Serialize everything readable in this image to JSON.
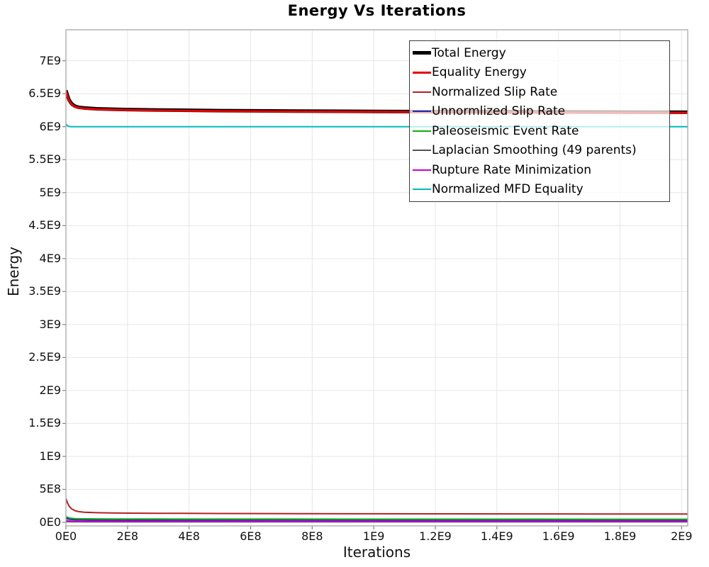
{
  "chart_data": {
    "type": "line",
    "title": "Energy Vs Iterations",
    "xlabel": "Iterations",
    "ylabel": "Energy",
    "xlim": [
      0,
      2020000000.0
    ],
    "ylim": [
      -54000000.0,
      7470000000.0
    ],
    "grid": true,
    "legend_position": "top-right",
    "background": "#ffffff",
    "grid_color": "#e6e6e6",
    "border_color": "#a8a8a8",
    "tick_color": "#808080",
    "x_ticks": {
      "values": [
        0,
        200000000.0,
        400000000.0,
        600000000.0,
        800000000.0,
        1000000000.0,
        1200000000.0,
        1400000000.0,
        1600000000.0,
        1800000000.0,
        2000000000.0
      ],
      "labels": [
        "0E0",
        "2E8",
        "4E8",
        "6E8",
        "8E8",
        "1E9",
        "1.2E9",
        "1.4E9",
        "1.6E9",
        "1.8E9",
        "2E9"
      ]
    },
    "y_ticks": {
      "values": [
        0,
        500000000.0,
        1000000000.0,
        1500000000.0,
        2000000000.0,
        2500000000.0,
        3000000000.0,
        3500000000.0,
        4000000000.0,
        4500000000.0,
        5000000000.0,
        5500000000.0,
        6000000000.0,
        6500000000.0,
        7000000000.0
      ],
      "labels": [
        "0E0",
        "5E8",
        "1E9",
        "1.5E9",
        "2E9",
        "2.5E9",
        "3E9",
        "3.5E9",
        "4E9",
        "4.5E9",
        "5E9",
        "5.5E9",
        "6E9",
        "6.5E9",
        "7E9"
      ]
    },
    "x": [
      0,
      5000000.0,
      10000000.0,
      15000000.0,
      20000000.0,
      30000000.0,
      40000000.0,
      60000000.0,
      100000000.0,
      150000000.0,
      200000000.0,
      300000000.0,
      500000000.0,
      750000000.0,
      1000000000.0,
      1250000000.0,
      1500000000.0,
      1750000000.0,
      2020000000.0
    ],
    "series": [
      {
        "name": "Total Energy",
        "color": "#000000",
        "width": 5,
        "values": [
          6550000000.0,
          6470000000.0,
          6410000000.0,
          6370000000.0,
          6340000000.0,
          6310000000.0,
          6295000000.0,
          6283000000.0,
          6272000000.0,
          6265000000.0,
          6260000000.0,
          6253000000.0,
          6244000000.0,
          6237000000.0,
          6232000000.0,
          6228000000.0,
          6225000000.0,
          6222000000.0,
          6219000000.0
        ]
      },
      {
        "name": "Equality Energy",
        "color": "#e60000",
        "width": 3,
        "values": [
          6543000000.0,
          6463000000.0,
          6403000000.0,
          6363000000.0,
          6333000000.0,
          6303000000.0,
          6288000000.0,
          6276000000.0,
          6265000000.0,
          6258000000.0,
          6253000000.0,
          6246000000.0,
          6237000000.0,
          6230000000.0,
          6225000000.0,
          6221000000.0,
          6218000000.0,
          6215000000.0,
          6212000000.0
        ]
      },
      {
        "name": "Normalized Slip Rate",
        "color": "#b22222",
        "width": 2,
        "values": [
          360000000.0,
          295000000.0,
          250000000.0,
          220000000.0,
          200000000.0,
          176000000.0,
          164000000.0,
          153000000.0,
          146000000.0,
          142000000.0,
          140000000.0,
          137000000.0,
          134000000.0,
          132000000.0,
          130000000.0,
          129000000.0,
          128000000.0,
          127000000.0,
          126000000.0
        ]
      },
      {
        "name": "Unnormlized Slip Rate",
        "color": "#2525b5",
        "width": 2,
        "values": [
          62000000.0,
          53000000.0,
          48000000.0,
          45000000.0,
          43000000.0,
          41000000.0,
          40000000.0,
          38000000.0,
          37000000.0,
          36000000.0,
          36000000.0,
          35000000.0,
          34000000.0,
          34000000.0,
          33000000.0,
          33000000.0,
          33000000.0,
          32000000.0,
          32000000.0
        ]
      },
      {
        "name": "Paleoseismic Event Rate",
        "color": "#0cb00c",
        "width": 2,
        "values": [
          88000000.0,
          75000000.0,
          68000000.0,
          63000000.0,
          60000000.0,
          57000000.0,
          55000000.0,
          53000000.0,
          52000000.0,
          51000000.0,
          50000000.0,
          50000000.0,
          49000000.0,
          49000000.0,
          48000000.0,
          48000000.0,
          48000000.0,
          47000000.0,
          47000000.0
        ]
      },
      {
        "name": "Laplacian Smoothing (49 parents)",
        "color": "#555555",
        "width": 2,
        "values": [
          11000000.0,
          10000000.0,
          10000000.0,
          9000000.0,
          9000000.0,
          9000000.0,
          9000000.0,
          8000000.0,
          8000000.0,
          8000000.0,
          8000000.0,
          8000000.0,
          8000000.0,
          8000000.0,
          8000000.0,
          8000000.0,
          8000000.0,
          8000000.0,
          8000000.0
        ]
      },
      {
        "name": "Rupture Rate Minimization",
        "color": "#cc00cc",
        "width": 2,
        "values": [
          27000000.0,
          23000000.0,
          21000000.0,
          20000000.0,
          19000000.0,
          18000000.0,
          18000000.0,
          17000000.0,
          17000000.0,
          16000000.0,
          16000000.0,
          16000000.0,
          16000000.0,
          15000000.0,
          15000000.0,
          15000000.0,
          15000000.0,
          15000000.0,
          15000000.0
        ]
      },
      {
        "name": "Normalized MFD Equality",
        "color": "#00bbbb",
        "width": 2,
        "values": [
          6040000000.0,
          6012000000.0,
          6004000000.0,
          6001000000.0,
          6000000000.0,
          6000000000.0,
          6000000000.0,
          6000000000.0,
          6000000000.0,
          6000000000.0,
          6000000000.0,
          6000000000.0,
          6000000000.0,
          6000000000.0,
          6000000000.0,
          6000000000.0,
          6000000000.0,
          6000000000.0,
          6000000000.0
        ]
      }
    ]
  }
}
